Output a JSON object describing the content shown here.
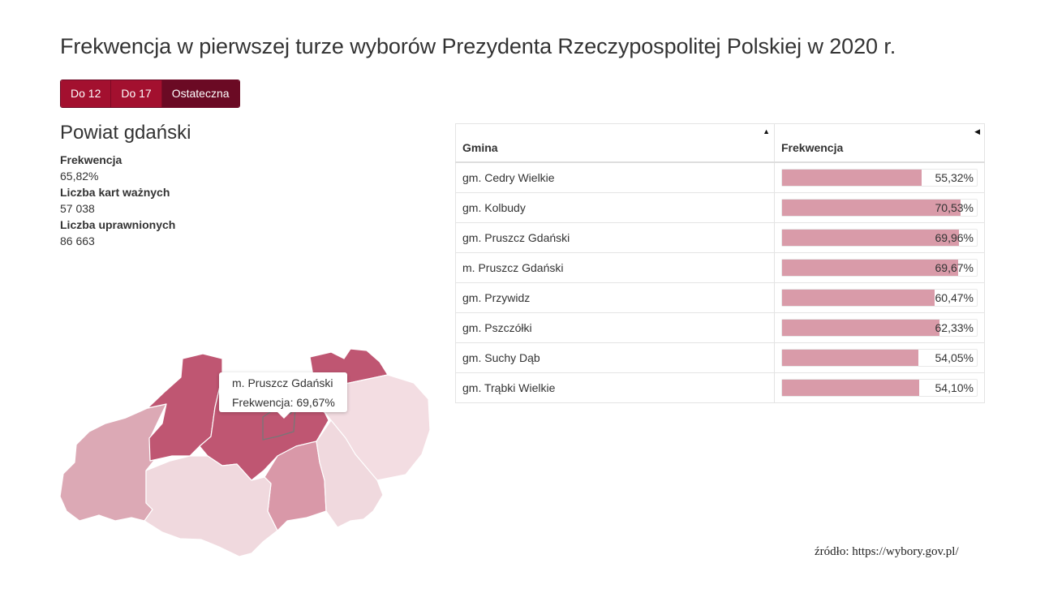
{
  "title": "Frekwencja w pierwszej turze wyborów Prezydenta Rzeczypospolitej Polskiej w 2020 r.",
  "tabs": [
    {
      "label": "Do 12",
      "active": false
    },
    {
      "label": "Do 17",
      "active": false
    },
    {
      "label": "Ostateczna",
      "active": true
    }
  ],
  "summary": {
    "region": "Powiat gdański",
    "stats": [
      {
        "label": "Frekwencja",
        "value": "65,82%"
      },
      {
        "label": "Liczba kart ważnych",
        "value": "57 038"
      },
      {
        "label": "Liczba uprawnionych",
        "value": "86 663"
      }
    ]
  },
  "tooltip": {
    "name": "m. Pruszcz Gdański",
    "text": "Frekwencja: 69,67%"
  },
  "table": {
    "headers": {
      "gmina": "Gmina",
      "frekwencja": "Frekwencja"
    },
    "rows": [
      {
        "gmina": "gm. Cedry Wielkie",
        "value": 55.32,
        "label": "55,32%"
      },
      {
        "gmina": "gm. Kolbudy",
        "value": 70.53,
        "label": "70,53%"
      },
      {
        "gmina": "gm. Pruszcz Gdański",
        "value": 69.96,
        "label": "69,96%"
      },
      {
        "gmina": "m. Pruszcz Gdański",
        "value": 69.67,
        "label": "69,67%"
      },
      {
        "gmina": "gm. Przywidz",
        "value": 60.47,
        "label": "60,47%"
      },
      {
        "gmina": "gm. Pszczółki",
        "value": 62.33,
        "label": "62,33%"
      },
      {
        "gmina": "gm. Suchy Dąb",
        "value": 54.05,
        "label": "54,05%"
      },
      {
        "gmina": "gm. Trąbki Wielkie",
        "value": 54.1,
        "label": "54,10%"
      }
    ],
    "bar_max": 77
  },
  "colors": {
    "accent": "#a3102f",
    "accent_active": "#6b0a24",
    "bar": "#d99ba9",
    "map_high": "#bf5672",
    "map_mid": "#d998a8",
    "map_mid2": "#dca9b5",
    "map_low": "#f0d9de",
    "map_low2": "#f3dde2"
  },
  "source": "źródło: https://wybory.gov.pl/"
}
